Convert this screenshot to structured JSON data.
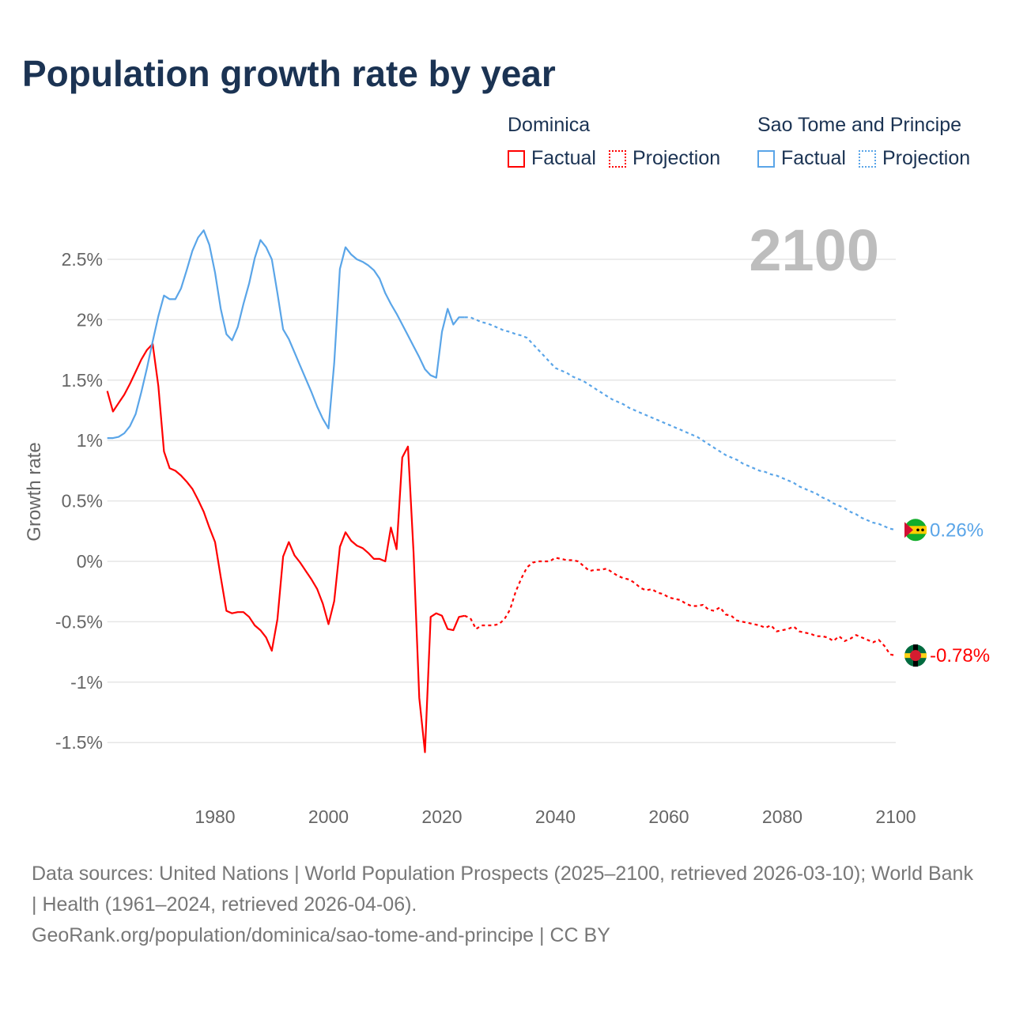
{
  "title": "Population growth rate by year",
  "legend": {
    "groups": [
      {
        "name": "Dominica",
        "color": "#ff0000",
        "factual": "Factual",
        "projection": "Projection"
      },
      {
        "name": "Sao Tome and Principe",
        "color": "#5aa5e8",
        "factual": "Factual",
        "projection": "Projection"
      }
    ]
  },
  "year_label": "2100",
  "footer": {
    "sources": "Data sources: United Nations | World Population Prospects (2025–2100, retrieved 2026-03-10); World Bank | Health (1961–2024, retrieved 2026-04-06).",
    "link": "GeoRank.org/population/dominica/sao-tome-and-principe | CC BY"
  },
  "chart_data": {
    "type": "line",
    "title": "Population growth rate by year",
    "xlabel": "",
    "ylabel": "Growth rate",
    "xlim": [
      1961,
      2100
    ],
    "ylim": [
      -1.85,
      3.0
    ],
    "x_ticks": [
      1980,
      2000,
      2020,
      2040,
      2060,
      2080,
      2100
    ],
    "x_tick_labels": [
      "1980",
      "2000",
      "2020",
      "2040",
      "2060",
      "2080",
      "2100"
    ],
    "y_ticks": [
      2.5,
      2,
      1.5,
      1,
      0.5,
      0,
      -0.5,
      -1,
      -1.5
    ],
    "y_tick_labels": [
      "2.5%",
      "2%",
      "1.5%",
      "1%",
      "0.5%",
      "0%",
      "-0.5%",
      "-1%",
      "-1.5%"
    ],
    "grid": true,
    "legend_position": "top-right",
    "series": [
      {
        "name": "Dominica",
        "color": "#ff0000",
        "end_label": "-0.78%",
        "factual_start": 1961,
        "factual": [
          1.41,
          1.24,
          1.31,
          1.38,
          1.47,
          1.57,
          1.67,
          1.75,
          1.8,
          1.45,
          0.91,
          0.77,
          0.75,
          0.71,
          0.66,
          0.6,
          0.51,
          0.41,
          0.28,
          0.16,
          -0.13,
          -0.41,
          -0.43,
          -0.42,
          -0.42,
          -0.46,
          -0.53,
          -0.57,
          -0.63,
          -0.74,
          -0.48,
          0.04,
          0.16,
          0.05,
          -0.01,
          -0.08,
          -0.15,
          -0.23,
          -0.35,
          -0.52,
          -0.33,
          0.12,
          0.24,
          0.17,
          0.13,
          0.11,
          0.07,
          0.02,
          0.02,
          0.0,
          0.28,
          0.1,
          0.86,
          0.95,
          0.07,
          -1.13,
          -1.58,
          -0.46,
          -0.43,
          -0.45,
          -0.56,
          -0.57,
          -0.46,
          -0.45
        ],
        "projection_start": 2025,
        "projection": [
          -0.47,
          -0.56,
          -0.53,
          -0.53,
          -0.53,
          -0.52,
          -0.48,
          -0.4,
          -0.25,
          -0.14,
          -0.05,
          -0.01,
          0.0,
          0.0,
          0.0,
          0.03,
          0.02,
          0.01,
          0.01,
          0.0,
          -0.04,
          -0.08,
          -0.07,
          -0.07,
          -0.06,
          -0.09,
          -0.12,
          -0.14,
          -0.15,
          -0.18,
          -0.22,
          -0.24,
          -0.23,
          -0.26,
          -0.27,
          -0.3,
          -0.31,
          -0.32,
          -0.35,
          -0.37,
          -0.37,
          -0.36,
          -0.4,
          -0.41,
          -0.38,
          -0.44,
          -0.45,
          -0.49,
          -0.5,
          -0.51,
          -0.52,
          -0.53,
          -0.55,
          -0.53,
          -0.58,
          -0.57,
          -0.56,
          -0.54,
          -0.58,
          -0.59,
          -0.6,
          -0.62,
          -0.62,
          -0.63,
          -0.66,
          -0.62,
          -0.66,
          -0.64,
          -0.61,
          -0.63,
          -0.65,
          -0.67,
          -0.65,
          -0.7,
          -0.77,
          -0.78
        ]
      },
      {
        "name": "Sao Tome and Principe",
        "color": "#5aa5e8",
        "end_label": "0.26%",
        "factual_start": 1961,
        "factual": [
          1.02,
          1.02,
          1.03,
          1.06,
          1.12,
          1.22,
          1.4,
          1.6,
          1.82,
          2.03,
          2.2,
          2.17,
          2.17,
          2.26,
          2.41,
          2.57,
          2.68,
          2.74,
          2.62,
          2.39,
          2.09,
          1.88,
          1.83,
          1.94,
          2.13,
          2.3,
          2.51,
          2.66,
          2.6,
          2.5,
          2.22,
          1.92,
          1.84,
          1.73,
          1.62,
          1.51,
          1.4,
          1.28,
          1.18,
          1.1,
          1.64,
          2.42,
          2.6,
          2.54,
          2.5,
          2.48,
          2.45,
          2.41,
          2.34,
          2.22,
          2.13,
          2.05,
          1.96,
          1.87,
          1.78,
          1.69,
          1.59,
          1.54,
          1.52,
          1.9,
          2.09,
          1.96,
          2.02,
          2.02
        ],
        "projection_start": 2025,
        "projection": [
          2.02,
          2.0,
          1.98,
          1.97,
          1.95,
          1.93,
          1.91,
          1.9,
          1.88,
          1.87,
          1.85,
          1.8,
          1.75,
          1.7,
          1.65,
          1.6,
          1.58,
          1.56,
          1.53,
          1.51,
          1.49,
          1.46,
          1.43,
          1.4,
          1.37,
          1.34,
          1.32,
          1.3,
          1.27,
          1.25,
          1.23,
          1.21,
          1.19,
          1.17,
          1.15,
          1.13,
          1.11,
          1.09,
          1.07,
          1.05,
          1.03,
          1.0,
          0.97,
          0.94,
          0.91,
          0.88,
          0.86,
          0.84,
          0.81,
          0.79,
          0.77,
          0.75,
          0.74,
          0.72,
          0.71,
          0.69,
          0.67,
          0.65,
          0.62,
          0.6,
          0.58,
          0.56,
          0.53,
          0.51,
          0.48,
          0.46,
          0.44,
          0.41,
          0.39,
          0.36,
          0.34,
          0.32,
          0.31,
          0.29,
          0.27,
          0.26
        ]
      }
    ]
  }
}
